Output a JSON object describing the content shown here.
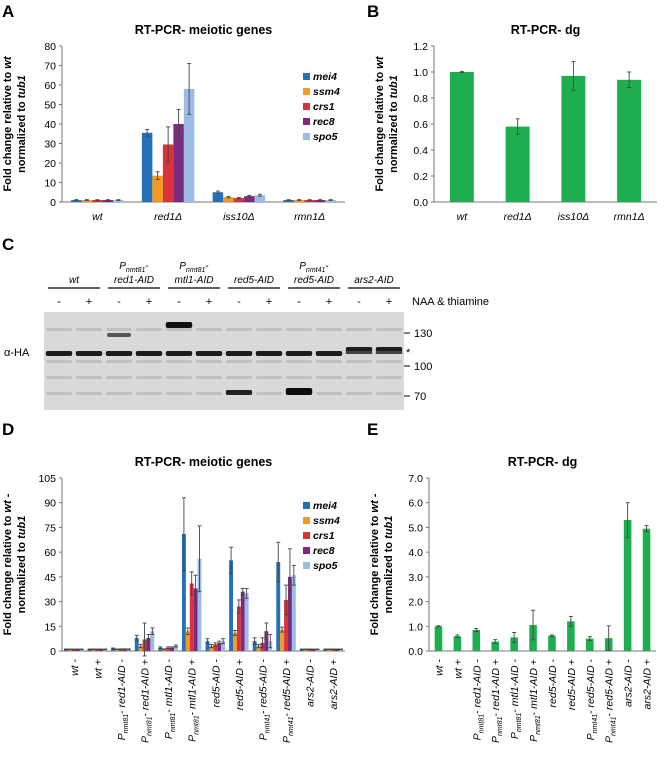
{
  "panels": {
    "A": "A",
    "B": "B",
    "C": "C",
    "D": "D",
    "E": "E"
  },
  "chart_data": [
    {
      "panel": "A",
      "type": "bar",
      "title": "RT-PCR- meiotic genes",
      "ylabel_line1": "Fold change relative to wt",
      "ylabel_line2": "normalized to tub1",
      "ylim": [
        0,
        80
      ],
      "yticks": [
        0,
        10,
        20,
        30,
        40,
        50,
        60,
        70,
        80
      ],
      "categories": [
        "wt",
        "red1Δ",
        "iss10Δ",
        "rmn1Δ"
      ],
      "legend_position": "right",
      "series": [
        {
          "name": "mei4",
          "color": "#2471b8",
          "values": [
            1,
            35.5,
            5,
            1
          ],
          "errors": [
            0.2,
            1.7,
            0.6,
            0.2
          ]
        },
        {
          "name": "ssm4",
          "color": "#f39a22",
          "values": [
            1,
            13.5,
            2.5,
            1
          ],
          "errors": [
            0.2,
            2,
            0.4,
            0.2
          ]
        },
        {
          "name": "crs1",
          "color": "#d8333b",
          "values": [
            1,
            29.5,
            2,
            1
          ],
          "errors": [
            0.2,
            9,
            0.3,
            0.2
          ]
        },
        {
          "name": "rec8",
          "color": "#7b2a7e",
          "values": [
            1,
            40,
            3,
            1
          ],
          "errors": [
            0.2,
            7.5,
            0.4,
            0.2
          ]
        },
        {
          "name": "spo5",
          "color": "#9cbde3",
          "values": [
            1,
            58,
            3.5,
            1
          ],
          "errors": [
            0.2,
            13,
            0.5,
            0.2
          ]
        }
      ]
    },
    {
      "panel": "B",
      "type": "bar",
      "title": "RT-PCR- dg",
      "ylabel_line1": "Fold change relative to wt",
      "ylabel_line2": "normalized to tub1",
      "ylim": [
        0,
        1.2
      ],
      "yticks": [
        "0.0",
        "0.2",
        "0.4",
        "0.6",
        "0.8",
        "1.0",
        "1.2"
      ],
      "categories": [
        "wt",
        "red1Δ",
        "iss10Δ",
        "rmn1Δ"
      ],
      "series": [
        {
          "name": "",
          "color": "#1fae4f",
          "values": [
            1.0,
            0.58,
            0.97,
            0.94
          ],
          "errors": [
            0.005,
            0.06,
            0.11,
            0.06
          ]
        }
      ]
    },
    {
      "panel": "D",
      "type": "bar",
      "title": "RT-PCR- meiotic genes",
      "ylabel_line1": "Fold change relative to wt -",
      "ylabel_line2": "normalized to tub1",
      "ylim": [
        0,
        105
      ],
      "yticks": [
        0,
        15,
        30,
        45,
        60,
        75,
        90,
        105
      ],
      "legend_position": "right",
      "categories": [
        {
          "prefix": "",
          "sub": "",
          "name": "wt",
          "sign": "-"
        },
        {
          "prefix": "",
          "sub": "",
          "name": "wt",
          "sign": "+"
        },
        {
          "prefix": "P",
          "sub": "nmt81",
          "name": "red1-AID",
          "sign": "-"
        },
        {
          "prefix": "P",
          "sub": "nmt81",
          "name": "red1-AID",
          "sign": "+"
        },
        {
          "prefix": "P",
          "sub": "nmt81",
          "name": "mtl1-AID",
          "sign": "-"
        },
        {
          "prefix": "P",
          "sub": "nmt81",
          "name": "mtl1-AID",
          "sign": "+"
        },
        {
          "prefix": "",
          "sub": "",
          "name": "red5-AID",
          "sign": "-"
        },
        {
          "prefix": "",
          "sub": "",
          "name": "red5-AID",
          "sign": "+"
        },
        {
          "prefix": "P",
          "sub": "nmt41",
          "name": "red5-AID",
          "sign": "-"
        },
        {
          "prefix": "P",
          "sub": "nmt41",
          "name": "red5-AID",
          "sign": "+"
        },
        {
          "prefix": "",
          "sub": "",
          "name": "ars2-AID",
          "sign": "-"
        },
        {
          "prefix": "",
          "sub": "",
          "name": "ars2-AID",
          "sign": "+"
        }
      ],
      "series": [
        {
          "name": "mei4",
          "color": "#2471b8",
          "values": [
            1,
            1,
            1.5,
            8,
            2,
            71,
            6,
            55,
            6,
            54,
            1,
            1
          ],
          "errors": [
            0.2,
            0.2,
            0.3,
            1.5,
            0.5,
            22,
            1.5,
            8,
            2,
            12,
            0.2,
            0.2
          ]
        },
        {
          "name": "ssm4",
          "color": "#f39a22",
          "values": [
            1,
            1,
            1,
            3,
            1,
            12,
            3,
            11,
            3,
            13,
            1,
            1
          ],
          "errors": [
            0.2,
            0.2,
            0.2,
            1,
            0.3,
            2,
            1,
            1.5,
            1,
            1.5,
            0.2,
            0.2
          ]
        },
        {
          "name": "crs1",
          "color": "#d8333b",
          "values": [
            1,
            1,
            1,
            7,
            2,
            41,
            4,
            27,
            5,
            31,
            1,
            1
          ],
          "errors": [
            0.2,
            0.2,
            0.3,
            10,
            0.5,
            7,
            1,
            4,
            3,
            9,
            0.2,
            0.2
          ]
        },
        {
          "name": "rec8",
          "color": "#7b2a7e",
          "values": [
            1,
            1,
            1,
            8,
            2,
            38,
            5,
            36,
            12,
            45,
            1,
            1
          ],
          "errors": [
            0.2,
            0.2,
            0.3,
            2,
            0.5,
            8,
            1,
            2,
            5,
            17,
            0.2,
            0.2
          ]
        },
        {
          "name": "spo5",
          "color": "#9cbde3",
          "values": [
            1,
            1,
            1,
            12,
            3,
            56,
            6,
            35,
            6,
            46,
            1,
            1
          ],
          "errors": [
            0.2,
            0.2,
            0.3,
            2,
            0.6,
            20,
            1.5,
            3,
            4,
            6,
            0.2,
            0.2
          ]
        }
      ]
    },
    {
      "panel": "E",
      "type": "bar",
      "title": "RT-PCR- dg",
      "ylabel_line1": "Fold change relative to wt -",
      "ylabel_line2": "normalized to tub1",
      "ylim": [
        0,
        7
      ],
      "yticks": [
        "0.0",
        "1.0",
        "2.0",
        "3.0",
        "4.0",
        "5.0",
        "6.0",
        "7.0"
      ],
      "categories": [
        {
          "prefix": "",
          "sub": "",
          "name": "wt",
          "sign": "-"
        },
        {
          "prefix": "",
          "sub": "",
          "name": "wt",
          "sign": "+"
        },
        {
          "prefix": "P",
          "sub": "nmt81",
          "name": "red1-AID",
          "sign": "-"
        },
        {
          "prefix": "P",
          "sub": "nmt81",
          "name": "red1-AID",
          "sign": "+"
        },
        {
          "prefix": "P",
          "sub": "nmt81",
          "name": "mtl1-AID",
          "sign": "-"
        },
        {
          "prefix": "P",
          "sub": "nmt81",
          "name": "mtl1-AID",
          "sign": "+"
        },
        {
          "prefix": "",
          "sub": "",
          "name": "red5-AID",
          "sign": "-"
        },
        {
          "prefix": "",
          "sub": "",
          "name": "red5-AID",
          "sign": "+"
        },
        {
          "prefix": "P",
          "sub": "nmt41",
          "name": "red5-AID",
          "sign": "-"
        },
        {
          "prefix": "P",
          "sub": "nmt41",
          "name": "red5-AID",
          "sign": "+"
        },
        {
          "prefix": "",
          "sub": "",
          "name": "ars2-AID",
          "sign": "-"
        },
        {
          "prefix": "",
          "sub": "",
          "name": "ars2-AID",
          "sign": "+"
        }
      ],
      "series": [
        {
          "name": "",
          "color": "#1fae4f",
          "values": [
            1.0,
            0.6,
            0.85,
            0.38,
            0.55,
            1.05,
            0.62,
            1.2,
            0.5,
            0.52,
            5.3,
            4.95
          ],
          "errors": [
            0.02,
            0.05,
            0.06,
            0.08,
            0.2,
            0.6,
            0.03,
            0.2,
            0.08,
            0.5,
            0.7,
            0.12
          ]
        }
      ]
    }
  ],
  "blot": {
    "groups": [
      {
        "prefix": "",
        "sub": "",
        "name": "wt"
      },
      {
        "prefix": "P",
        "sub": "nmt81",
        "name": "red1-AID"
      },
      {
        "prefix": "P",
        "sub": "nmt81",
        "name": "mtl1-AID"
      },
      {
        "prefix": "",
        "sub": "",
        "name": "red5-AID"
      },
      {
        "prefix": "P",
        "sub": "nmt41",
        "name": "red5-AID"
      },
      {
        "prefix": "",
        "sub": "",
        "name": "ars2-AID"
      }
    ],
    "lane_signs": [
      "-",
      "+",
      "-",
      "+",
      "-",
      "+",
      "-",
      "+",
      "-",
      "+",
      "-",
      "+"
    ],
    "treatment_label": "NAA & thiamine",
    "antibody_label": "α-HA",
    "marker_labels": [
      "130",
      "100",
      "70"
    ],
    "nonspecific_mark": "*"
  }
}
